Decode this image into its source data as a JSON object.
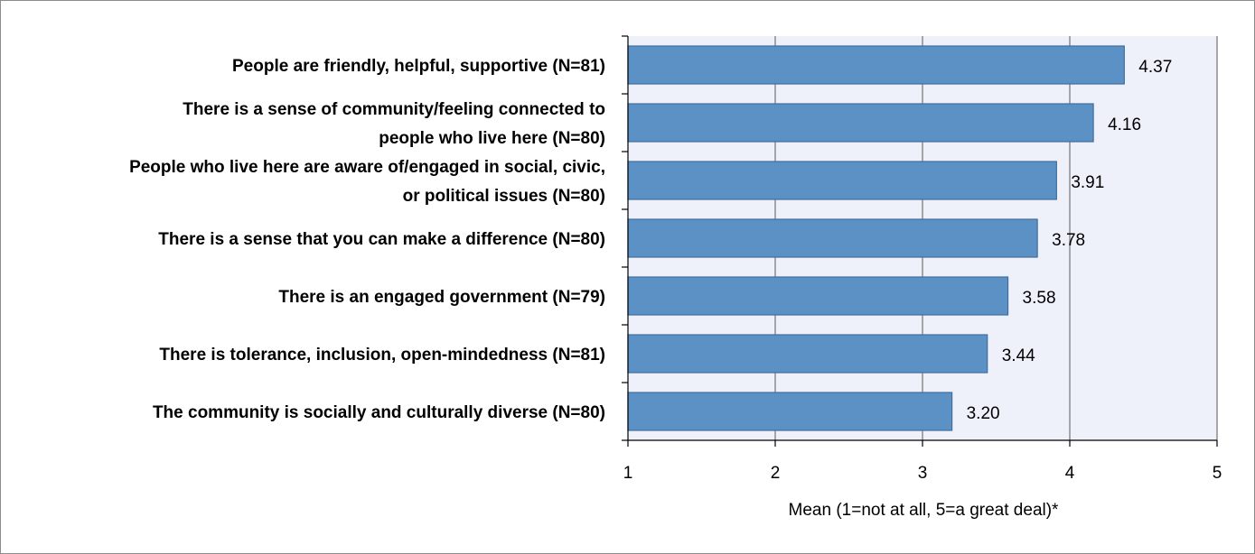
{
  "chart_data": {
    "type": "bar",
    "orientation": "horizontal",
    "categories": [
      [
        "People are friendly, helpful, supportive (N=81)"
      ],
      [
        "There is a sense of community/feeling connected to",
        "people who live here (N=80)"
      ],
      [
        "People who live here are aware of/engaged in social, civic,",
        "or political issues (N=80)"
      ],
      [
        "There is a sense that you can make a difference (N=80)"
      ],
      [
        "There is an engaged government (N=79)"
      ],
      [
        "There is tolerance, inclusion, open-mindedness (N=81)"
      ],
      [
        "The community is socially and culturally diverse (N=80)"
      ]
    ],
    "values": [
      4.37,
      4.16,
      3.91,
      3.78,
      3.58,
      3.44,
      3.2
    ],
    "value_labels": [
      "4.37",
      "4.16",
      "3.91",
      "3.78",
      "3.58",
      "3.44",
      "3.20"
    ],
    "xlabel": "Mean (1=not at all, 5=a great deal)*",
    "xlim": [
      1,
      5
    ],
    "xticks": [
      1,
      2,
      3,
      4,
      5
    ],
    "grid": true,
    "colors": {
      "bar_fill": "#5b91c5",
      "bar_stroke": "#3f6e9f",
      "plot_bg": "#eef0fa",
      "grid": "#8c8c8c",
      "axis": "#000000"
    }
  }
}
